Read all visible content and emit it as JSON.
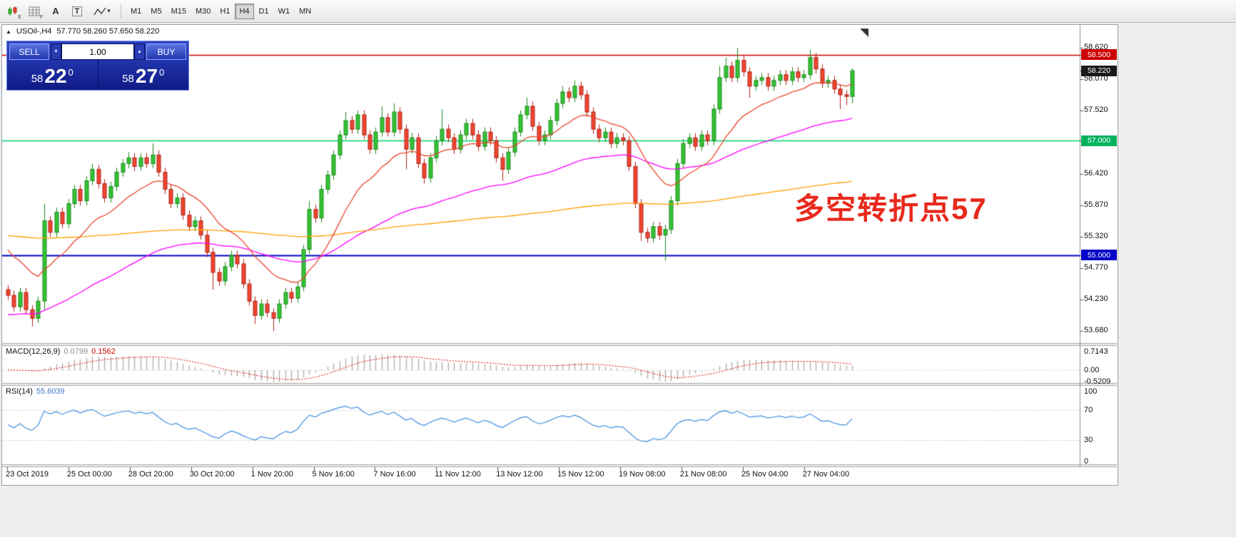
{
  "toolbar": {
    "subscripts": [
      "E",
      "F"
    ],
    "text_tool_label": "A",
    "label_tool_label": "T",
    "timeframes": [
      "M1",
      "M5",
      "M15",
      "M30",
      "H1",
      "H4",
      "D1",
      "W1",
      "MN"
    ],
    "active_timeframe": "H4"
  },
  "chart_window": {
    "header": {
      "symbol_tf": "USOil-,H4",
      "ohlc": "57.770 58.260 57.650 58.220"
    }
  },
  "trade_panel": {
    "sell_label": "SELL",
    "buy_label": "BUY",
    "volume": "1.00",
    "bid": {
      "prefix": "58",
      "big": "22",
      "sup": "0"
    },
    "ask": {
      "prefix": "58",
      "big": "27",
      "sup": "0"
    }
  },
  "annotation": {
    "text": "多空转折点57",
    "color": "#e8291c"
  },
  "chart_data": {
    "type": "candlestick",
    "symbol": "USOil-",
    "timeframe": "H4",
    "last_ohlc": {
      "open": 57.77,
      "high": 58.26,
      "low": 57.65,
      "close": 58.22
    },
    "bull_color": "#35c335",
    "bear_color": "#ef4630",
    "y_axis": {
      "min": 53.68,
      "max": 58.62,
      "labels": [
        "58.620",
        "58.070",
        "57.520",
        "56.420",
        "55.870",
        "55.320",
        "54.770",
        "54.230",
        "53.680"
      ]
    },
    "x_labels": [
      "23 Oct 2019",
      "25 Oct 00:00",
      "28 Oct 20:00",
      "30 Oct 20:00",
      "1 Nov 20:00",
      "5 Nov 16:00",
      "7 Nov 16:00",
      "11 Nov 12:00",
      "13 Nov 12:00",
      "15 Nov 12:00",
      "19 Nov 08:00",
      "21 Nov 08:00",
      "25 Nov 04:00",
      "27 Nov 04:00"
    ],
    "hlines": [
      {
        "price": 58.5,
        "color": "#cc0000",
        "width": 1.4
      },
      {
        "price": 57.0,
        "color": "#00d26a",
        "width": 1.6
      },
      {
        "price": 55.0,
        "color": "#0000c8",
        "width": 2
      }
    ],
    "price_tags": [
      {
        "text": "58.500",
        "bg": "#cc0000"
      },
      {
        "text": "58.220",
        "bg": "#1a1a1a"
      },
      {
        "text": "57.000",
        "bg": "#00b35c"
      },
      {
        "text": "55.000",
        "bg": "#0000c8"
      }
    ],
    "overlays": [
      {
        "name": "ma-fast",
        "color": "#e8452c"
      },
      {
        "name": "ma-mid",
        "color": "#ff00ff"
      },
      {
        "name": "ma-slow",
        "color": "#ffa000"
      }
    ],
    "candles": [
      [
        54.4,
        54.48,
        54.22,
        54.3
      ],
      [
        54.3,
        54.38,
        54.02,
        54.1
      ],
      [
        54.1,
        54.43,
        54.02,
        54.35
      ],
      [
        54.35,
        54.43,
        53.97,
        54.05
      ],
      [
        54.05,
        54.13,
        53.76,
        53.9
      ],
      [
        53.9,
        54.28,
        53.82,
        54.2
      ],
      [
        54.2,
        55.9,
        54.05,
        55.6
      ],
      [
        55.6,
        55.68,
        55.32,
        55.4
      ],
      [
        55.4,
        55.83,
        55.32,
        55.75
      ],
      [
        55.75,
        55.83,
        55.47,
        55.55
      ],
      [
        55.55,
        55.98,
        55.47,
        55.9
      ],
      [
        55.9,
        56.23,
        55.82,
        56.15
      ],
      [
        56.15,
        56.23,
        55.87,
        55.95
      ],
      [
        55.95,
        56.38,
        55.87,
        56.3
      ],
      [
        56.3,
        56.6,
        56.22,
        56.5
      ],
      [
        56.5,
        56.58,
        56.17,
        56.25
      ],
      [
        56.25,
        56.33,
        55.92,
        56.0
      ],
      [
        56.0,
        56.28,
        55.92,
        56.2
      ],
      [
        56.2,
        56.53,
        56.12,
        56.45
      ],
      [
        56.45,
        56.68,
        56.37,
        56.6
      ],
      [
        56.6,
        56.8,
        56.52,
        56.7
      ],
      [
        56.7,
        56.78,
        56.47,
        56.55
      ],
      [
        56.55,
        56.78,
        56.47,
        56.7
      ],
      [
        56.7,
        56.78,
        56.52,
        56.6
      ],
      [
        56.6,
        56.95,
        56.52,
        56.75
      ],
      [
        56.75,
        56.83,
        56.37,
        56.45
      ],
      [
        56.45,
        56.53,
        56.07,
        56.15
      ],
      [
        56.15,
        56.23,
        55.82,
        55.9
      ],
      [
        55.9,
        56.08,
        55.82,
        56.0
      ],
      [
        56.0,
        56.08,
        55.62,
        55.7
      ],
      [
        55.7,
        55.78,
        55.42,
        55.5
      ],
      [
        55.5,
        55.68,
        55.42,
        55.6
      ],
      [
        55.6,
        55.68,
        55.27,
        55.35
      ],
      [
        55.35,
        55.43,
        54.97,
        55.05
      ],
      [
        55.05,
        55.13,
        54.4,
        54.7
      ],
      [
        54.7,
        54.78,
        54.47,
        54.55
      ],
      [
        54.55,
        54.88,
        54.47,
        54.8
      ],
      [
        54.8,
        55.08,
        54.72,
        55.0
      ],
      [
        55.0,
        55.08,
        54.77,
        54.85
      ],
      [
        54.85,
        54.93,
        54.42,
        54.5
      ],
      [
        54.5,
        54.58,
        54.12,
        54.2
      ],
      [
        54.2,
        54.28,
        53.8,
        53.95
      ],
      [
        53.95,
        54.23,
        53.87,
        54.15
      ],
      [
        54.15,
        54.23,
        53.92,
        54.0
      ],
      [
        54.0,
        54.08,
        53.68,
        53.9
      ],
      [
        53.9,
        54.23,
        53.82,
        54.15
      ],
      [
        54.15,
        54.43,
        54.07,
        54.35
      ],
      [
        54.35,
        54.43,
        54.17,
        54.25
      ],
      [
        54.25,
        54.53,
        54.17,
        54.45
      ],
      [
        54.45,
        55.18,
        54.37,
        55.1
      ],
      [
        55.1,
        55.95,
        55.02,
        55.8
      ],
      [
        55.8,
        55.88,
        55.57,
        55.65
      ],
      [
        55.65,
        56.23,
        55.57,
        56.15
      ],
      [
        56.15,
        56.48,
        56.07,
        56.4
      ],
      [
        56.4,
        56.83,
        56.32,
        56.75
      ],
      [
        56.75,
        57.18,
        56.67,
        57.1
      ],
      [
        57.1,
        57.5,
        57.02,
        57.35
      ],
      [
        57.35,
        57.43,
        57.12,
        57.2
      ],
      [
        57.2,
        57.53,
        57.12,
        57.45
      ],
      [
        57.45,
        57.53,
        57.02,
        57.1
      ],
      [
        57.1,
        57.18,
        56.77,
        56.85
      ],
      [
        56.85,
        57.23,
        56.77,
        57.15
      ],
      [
        57.15,
        57.6,
        57.07,
        57.4
      ],
      [
        57.4,
        57.48,
        57.07,
        57.15
      ],
      [
        57.15,
        57.65,
        57.07,
        57.5
      ],
      [
        57.5,
        57.58,
        57.12,
        57.2
      ],
      [
        57.2,
        57.28,
        56.5,
        56.85
      ],
      [
        56.85,
        57.13,
        56.77,
        57.05
      ],
      [
        57.05,
        57.13,
        56.52,
        56.6
      ],
      [
        56.6,
        56.68,
        56.25,
        56.35
      ],
      [
        56.35,
        56.78,
        56.27,
        56.7
      ],
      [
        56.7,
        57.08,
        56.62,
        57.0
      ],
      [
        57.0,
        57.55,
        56.92,
        57.2
      ],
      [
        57.2,
        57.28,
        56.97,
        57.05
      ],
      [
        57.05,
        57.13,
        56.77,
        56.85
      ],
      [
        56.85,
        57.18,
        56.77,
        57.1
      ],
      [
        57.1,
        57.38,
        57.02,
        57.3
      ],
      [
        57.3,
        57.38,
        57.02,
        57.1
      ],
      [
        57.1,
        57.18,
        56.82,
        56.9
      ],
      [
        56.9,
        57.23,
        56.82,
        57.15
      ],
      [
        57.15,
        57.23,
        56.92,
        57.0
      ],
      [
        57.0,
        57.08,
        56.62,
        56.7
      ],
      [
        56.7,
        56.78,
        56.3,
        56.5
      ],
      [
        56.5,
        56.88,
        56.42,
        56.8
      ],
      [
        56.8,
        57.23,
        56.72,
        57.15
      ],
      [
        57.15,
        57.53,
        57.07,
        57.45
      ],
      [
        57.45,
        57.75,
        57.37,
        57.6
      ],
      [
        57.6,
        57.68,
        57.17,
        57.25
      ],
      [
        57.25,
        57.33,
        56.92,
        57.0
      ],
      [
        57.0,
        57.18,
        56.92,
        57.1
      ],
      [
        57.1,
        57.43,
        57.02,
        57.35
      ],
      [
        57.35,
        57.73,
        57.27,
        57.65
      ],
      [
        57.65,
        57.95,
        57.57,
        57.85
      ],
      [
        57.85,
        57.93,
        57.67,
        57.75
      ],
      [
        57.75,
        58.05,
        57.67,
        57.95
      ],
      [
        57.95,
        58.03,
        57.72,
        57.8
      ],
      [
        57.8,
        57.88,
        57.42,
        57.5
      ],
      [
        57.5,
        57.58,
        57.12,
        57.2
      ],
      [
        57.2,
        57.28,
        56.97,
        57.05
      ],
      [
        57.05,
        57.23,
        56.97,
        57.15
      ],
      [
        57.15,
        57.23,
        56.87,
        56.95
      ],
      [
        56.95,
        57.13,
        56.87,
        57.05
      ],
      [
        57.05,
        57.13,
        56.92,
        57.0
      ],
      [
        57.0,
        57.08,
        56.47,
        56.55
      ],
      [
        56.55,
        56.63,
        55.82,
        55.9
      ],
      [
        55.9,
        55.98,
        55.25,
        55.4
      ],
      [
        55.4,
        55.48,
        55.22,
        55.3
      ],
      [
        55.3,
        55.58,
        55.22,
        55.5
      ],
      [
        55.5,
        55.58,
        55.27,
        55.35
      ],
      [
        55.35,
        55.53,
        54.9,
        55.45
      ],
      [
        55.45,
        56.03,
        55.37,
        55.95
      ],
      [
        55.95,
        56.68,
        55.87,
        56.6
      ],
      [
        56.6,
        57.03,
        56.52,
        56.95
      ],
      [
        56.95,
        57.13,
        56.87,
        57.05
      ],
      [
        57.05,
        57.13,
        56.82,
        56.9
      ],
      [
        56.9,
        57.18,
        56.82,
        57.1
      ],
      [
        57.1,
        57.18,
        56.92,
        57.0
      ],
      [
        57.0,
        57.63,
        56.92,
        57.55
      ],
      [
        57.55,
        58.3,
        57.47,
        58.1
      ],
      [
        58.1,
        58.45,
        58.02,
        58.3
      ],
      [
        58.3,
        58.38,
        58.02,
        58.1
      ],
      [
        58.1,
        58.62,
        58.02,
        58.4
      ],
      [
        58.4,
        58.48,
        58.12,
        58.2
      ],
      [
        58.2,
        58.28,
        57.75,
        57.95
      ],
      [
        57.95,
        58.13,
        57.87,
        58.05
      ],
      [
        58.05,
        58.18,
        57.97,
        58.1
      ],
      [
        58.1,
        58.18,
        57.87,
        57.95
      ],
      [
        57.95,
        58.13,
        57.87,
        58.05
      ],
      [
        58.05,
        58.23,
        57.97,
        58.15
      ],
      [
        58.15,
        58.23,
        57.97,
        58.05
      ],
      [
        58.05,
        58.28,
        57.97,
        58.2
      ],
      [
        58.2,
        58.28,
        58.02,
        58.1
      ],
      [
        58.1,
        58.23,
        58.02,
        58.15
      ],
      [
        58.15,
        58.58,
        58.07,
        58.45
      ],
      [
        58.45,
        58.53,
        58.17,
        58.25
      ],
      [
        58.25,
        58.33,
        57.92,
        58.0
      ],
      [
        58.0,
        58.13,
        57.92,
        58.05
      ],
      [
        58.05,
        58.13,
        57.82,
        57.9
      ],
      [
        57.9,
        57.98,
        57.55,
        57.8
      ],
      [
        57.8,
        57.88,
        57.62,
        57.77
      ],
      [
        57.77,
        58.26,
        57.65,
        58.22
      ]
    ],
    "indicators": [
      {
        "name": "MACD",
        "params": "(12,26,9)",
        "value_main": "0.0799",
        "value_signal": "0.1562",
        "axis_labels": [
          "0.7143",
          "0.00",
          "-0.5209"
        ],
        "histogram_color": "#b0b0b0",
        "signal_color": "#d40000"
      },
      {
        "name": "RSI",
        "params": "(14)",
        "value": "55.6039",
        "axis_labels": [
          "100",
          "70",
          "30",
          "0"
        ],
        "levels": [
          70,
          30
        ],
        "line_color": "#3e8ede"
      }
    ]
  }
}
